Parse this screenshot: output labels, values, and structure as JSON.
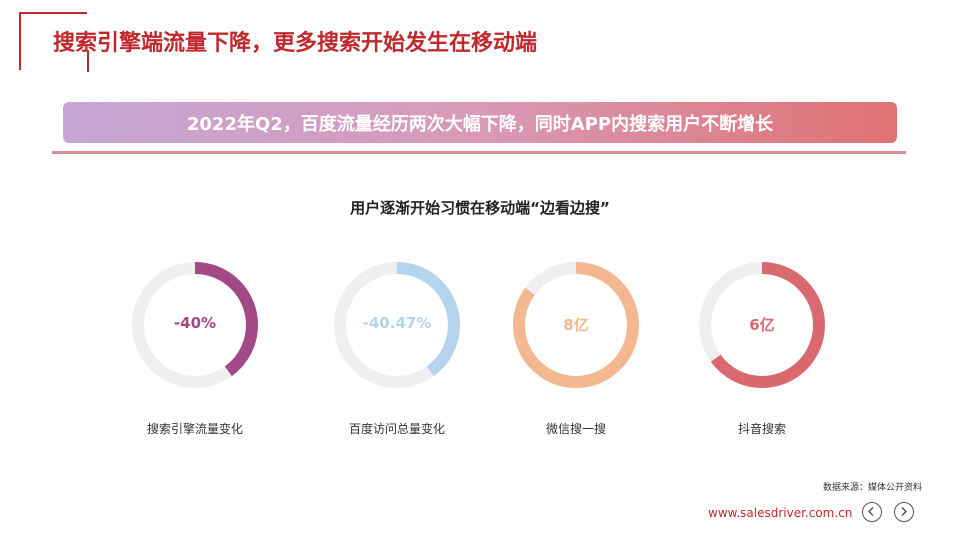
{
  "header": {
    "title": "搜索引擎端流量下降，更多搜索开始发生在移动端"
  },
  "banner": {
    "text": "2022年Q2，百度流量经历两次大幅下降，同时APP内搜索用户不断增长"
  },
  "section": {
    "subtitle": "用户逐渐开始习惯在移动端“边看边搜”"
  },
  "metrics": [
    {
      "value": "-40%",
      "caption": "搜索引擎流量变化",
      "fill_fraction": 0.4,
      "color": "#a24a86"
    },
    {
      "value": "-40.47%",
      "caption": "百度访问总量变化",
      "fill_fraction": 0.4,
      "color": "#b4d3ec"
    },
    {
      "value": "8亿",
      "caption": "微信搜一搜",
      "fill_fraction": 0.85,
      "color": "#f4b890"
    },
    {
      "value": "6亿",
      "caption": "抖音搜索",
      "fill_fraction": 0.65,
      "color": "#d9686f"
    }
  ],
  "footer": {
    "source": "数据来源：媒体公开资料",
    "website": "www.salesdriver.com.cn"
  },
  "icons": {
    "prev": "chevron-left-icon",
    "next": "chevron-right-icon"
  },
  "colors": {
    "accent_red": "#c0282d",
    "ring_track": "#efefef"
  }
}
